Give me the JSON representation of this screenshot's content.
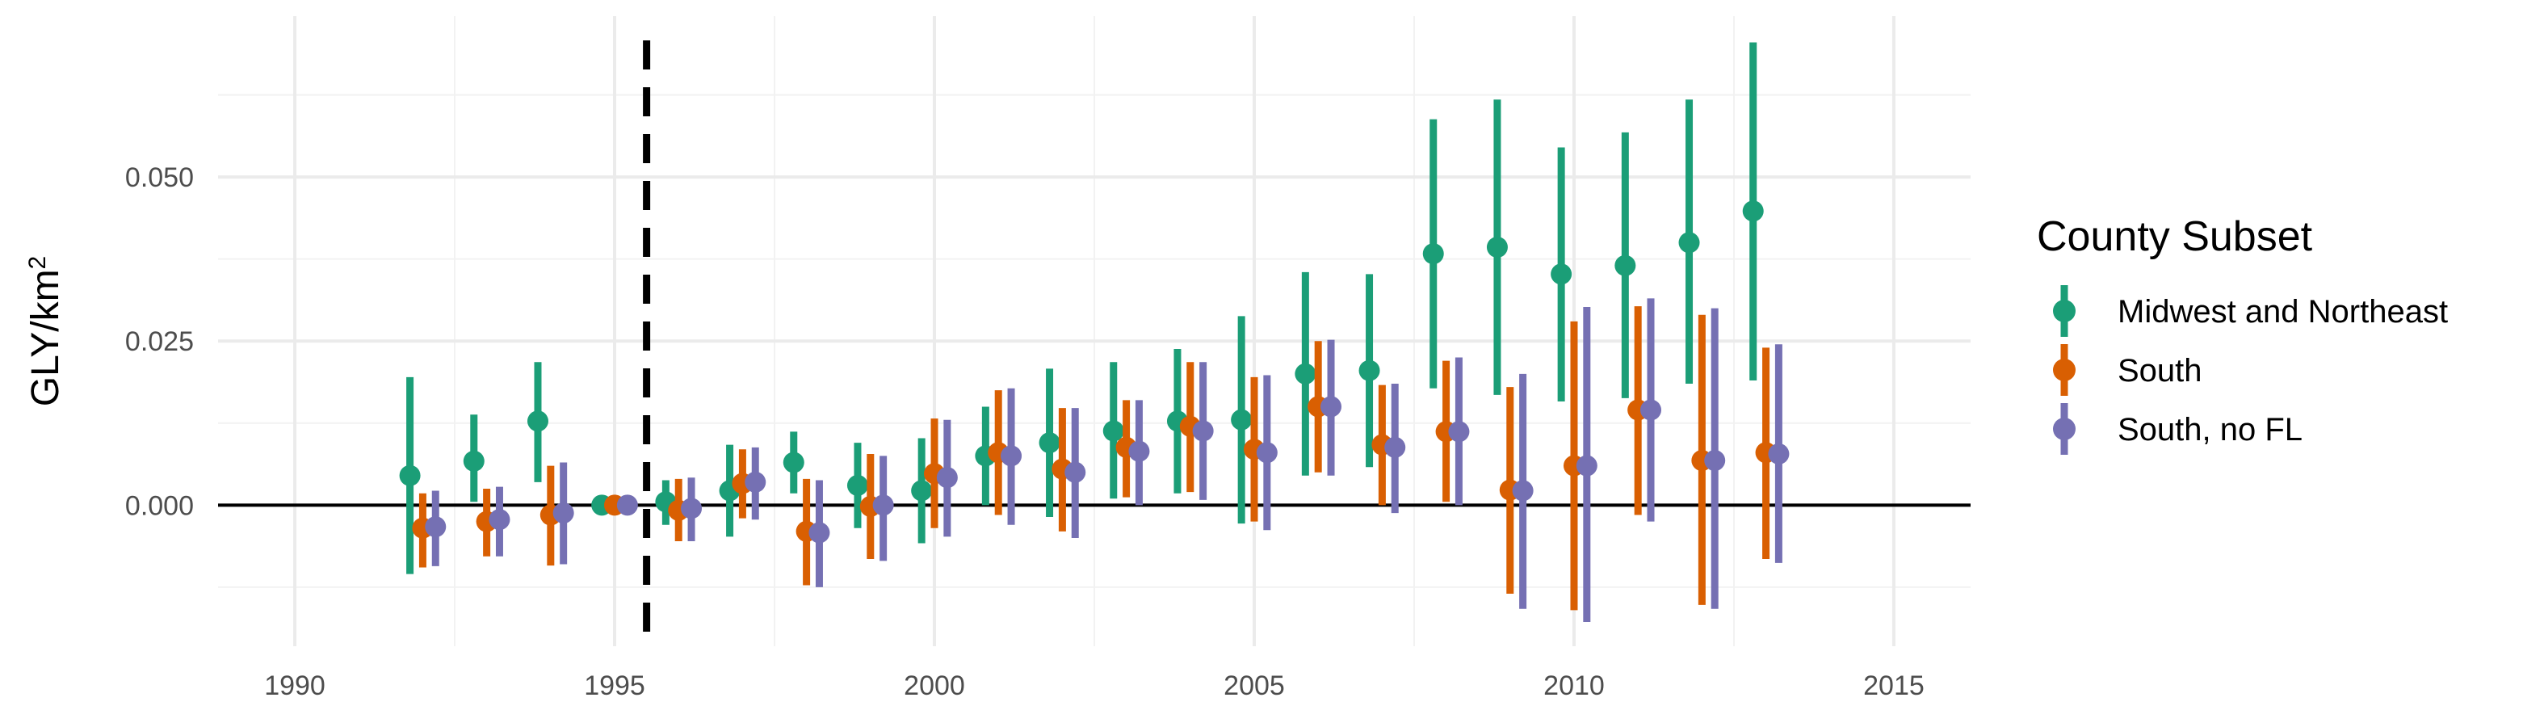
{
  "chart_data": {
    "type": "scatter",
    "title": "",
    "xlabel": "",
    "ylabel": "GLY/km",
    "ylabel_superscript": "2",
    "xlim": [
      1988.8,
      2016.2
    ],
    "ylim": [
      -0.0215,
      0.0745
    ],
    "x_ticks": [
      1990,
      1995,
      2000,
      2005,
      2010,
      2015
    ],
    "x_tick_labels": [
      "1990",
      "1995",
      "2000",
      "2005",
      "2010",
      "2015"
    ],
    "y_ticks": [
      0.0,
      0.025,
      0.05
    ],
    "y_tick_labels": [
      "0.000",
      "0.025",
      "0.050"
    ],
    "grid": true,
    "reference_hline": 0.0,
    "reference_vline": 1995.5,
    "legend": {
      "title": "County Subset",
      "position": "right",
      "entries": [
        "Midwest and Northeast",
        "South",
        "South, no FL"
      ]
    },
    "series": [
      {
        "name": "Midwest and Northeast",
        "color": "#1b9e77",
        "offset": -0.2,
        "points": [
          {
            "x": 1992,
            "y": 0.0045,
            "low": -0.0105,
            "high": 0.0195
          },
          {
            "x": 1993,
            "y": 0.0067,
            "low": 0.0005,
            "high": 0.0138
          },
          {
            "x": 1994,
            "y": 0.0128,
            "low": 0.0035,
            "high": 0.0218
          },
          {
            "x": 1995,
            "y": 0.0,
            "low": 0.0,
            "high": 0.0
          },
          {
            "x": 1996,
            "y": 0.0005,
            "low": -0.003,
            "high": 0.0038
          },
          {
            "x": 1997,
            "y": 0.0022,
            "low": -0.0048,
            "high": 0.0092
          },
          {
            "x": 1998,
            "y": 0.0065,
            "low": 0.0018,
            "high": 0.0112
          },
          {
            "x": 1999,
            "y": 0.003,
            "low": -0.0035,
            "high": 0.0095
          },
          {
            "x": 2000,
            "y": 0.0022,
            "low": -0.0058,
            "high": 0.0102
          },
          {
            "x": 2001,
            "y": 0.0075,
            "low": 0.0,
            "high": 0.015
          },
          {
            "x": 2002,
            "y": 0.0095,
            "low": -0.0018,
            "high": 0.0208
          },
          {
            "x": 2003,
            "y": 0.0113,
            "low": 0.001,
            "high": 0.0218
          },
          {
            "x": 2004,
            "y": 0.0128,
            "low": 0.0018,
            "high": 0.0238
          },
          {
            "x": 2005,
            "y": 0.013,
            "low": -0.0028,
            "high": 0.0288
          },
          {
            "x": 2006,
            "y": 0.02,
            "low": 0.0045,
            "high": 0.0355
          },
          {
            "x": 2007,
            "y": 0.0205,
            "low": 0.0058,
            "high": 0.0352
          },
          {
            "x": 2008,
            "y": 0.0383,
            "low": 0.0178,
            "high": 0.0588
          },
          {
            "x": 2009,
            "y": 0.0393,
            "low": 0.0168,
            "high": 0.0618
          },
          {
            "x": 2010,
            "y": 0.0352,
            "low": 0.0158,
            "high": 0.0545
          },
          {
            "x": 2011,
            "y": 0.0365,
            "low": 0.0163,
            "high": 0.0568
          },
          {
            "x": 2012,
            "y": 0.04,
            "low": 0.0185,
            "high": 0.0618
          },
          {
            "x": 2013,
            "y": 0.0448,
            "low": 0.019,
            "high": 0.0705
          }
        ]
      },
      {
        "name": "South",
        "color": "#d95f02",
        "offset": 0.0,
        "points": [
          {
            "x": 1992,
            "y": -0.0035,
            "low": -0.0095,
            "high": 0.0018
          },
          {
            "x": 1993,
            "y": -0.0025,
            "low": -0.0078,
            "high": 0.0025
          },
          {
            "x": 1994,
            "y": -0.0015,
            "low": -0.0092,
            "high": 0.006
          },
          {
            "x": 1995,
            "y": 0.0,
            "low": 0.0,
            "high": 0.0
          },
          {
            "x": 1996,
            "y": -0.0008,
            "low": -0.0055,
            "high": 0.004
          },
          {
            "x": 1997,
            "y": 0.0033,
            "low": -0.002,
            "high": 0.0085
          },
          {
            "x": 1998,
            "y": -0.004,
            "low": -0.0122,
            "high": 0.004
          },
          {
            "x": 1999,
            "y": -0.0002,
            "low": -0.0082,
            "high": 0.0078
          },
          {
            "x": 2000,
            "y": 0.0048,
            "low": -0.0035,
            "high": 0.0132
          },
          {
            "x": 2001,
            "y": 0.008,
            "low": -0.0015,
            "high": 0.0175
          },
          {
            "x": 2002,
            "y": 0.0055,
            "low": -0.004,
            "high": 0.0148
          },
          {
            "x": 2003,
            "y": 0.0088,
            "low": 0.0012,
            "high": 0.016
          },
          {
            "x": 2004,
            "y": 0.012,
            "low": 0.002,
            "high": 0.0218
          },
          {
            "x": 2005,
            "y": 0.0085,
            "low": -0.0025,
            "high": 0.0195
          },
          {
            "x": 2006,
            "y": 0.015,
            "low": 0.005,
            "high": 0.025
          },
          {
            "x": 2007,
            "y": 0.0092,
            "low": 0.0,
            "high": 0.0183
          },
          {
            "x": 2008,
            "y": 0.0112,
            "low": 0.0005,
            "high": 0.022
          },
          {
            "x": 2009,
            "y": 0.0023,
            "low": -0.0135,
            "high": 0.018
          },
          {
            "x": 2010,
            "y": 0.006,
            "low": -0.016,
            "high": 0.028
          },
          {
            "x": 2011,
            "y": 0.0145,
            "low": -0.0015,
            "high": 0.0303
          },
          {
            "x": 2012,
            "y": 0.0068,
            "low": -0.0152,
            "high": 0.029
          },
          {
            "x": 2013,
            "y": 0.008,
            "low": -0.0082,
            "high": 0.024
          }
        ]
      },
      {
        "name": "South, no FL",
        "color": "#7570b3",
        "offset": 0.2,
        "points": [
          {
            "x": 1992,
            "y": -0.0033,
            "low": -0.0093,
            "high": 0.0022
          },
          {
            "x": 1993,
            "y": -0.0022,
            "low": -0.0078,
            "high": 0.0028
          },
          {
            "x": 1994,
            "y": -0.0012,
            "low": -0.009,
            "high": 0.0065
          },
          {
            "x": 1995,
            "y": 0.0,
            "low": 0.0,
            "high": 0.0
          },
          {
            "x": 1996,
            "y": -0.0005,
            "low": -0.0055,
            "high": 0.0042
          },
          {
            "x": 1997,
            "y": 0.0035,
            "low": -0.0022,
            "high": 0.0088
          },
          {
            "x": 1998,
            "y": -0.0042,
            "low": -0.0125,
            "high": 0.0038
          },
          {
            "x": 1999,
            "y": 0.0,
            "low": -0.0085,
            "high": 0.0075
          },
          {
            "x": 2000,
            "y": 0.0042,
            "low": -0.0048,
            "high": 0.013
          },
          {
            "x": 2001,
            "y": 0.0075,
            "low": -0.003,
            "high": 0.0178
          },
          {
            "x": 2002,
            "y": 0.005,
            "low": -0.005,
            "high": 0.0148
          },
          {
            "x": 2003,
            "y": 0.0082,
            "low": 0.0,
            "high": 0.016
          },
          {
            "x": 2004,
            "y": 0.0113,
            "low": 0.0008,
            "high": 0.0218
          },
          {
            "x": 2005,
            "y": 0.008,
            "low": -0.0038,
            "high": 0.0198
          },
          {
            "x": 2006,
            "y": 0.015,
            "low": 0.0045,
            "high": 0.0252
          },
          {
            "x": 2007,
            "y": 0.0088,
            "low": -0.0012,
            "high": 0.0185
          },
          {
            "x": 2008,
            "y": 0.0112,
            "low": 0.0,
            "high": 0.0225
          },
          {
            "x": 2009,
            "y": 0.0022,
            "low": -0.0158,
            "high": 0.02
          },
          {
            "x": 2010,
            "y": 0.006,
            "low": -0.0178,
            "high": 0.0302
          },
          {
            "x": 2011,
            "y": 0.0145,
            "low": -0.0025,
            "high": 0.0315
          },
          {
            "x": 2012,
            "y": 0.0068,
            "low": -0.0158,
            "high": 0.03
          },
          {
            "x": 2013,
            "y": 0.0078,
            "low": -0.0088,
            "high": 0.0245
          }
        ]
      }
    ]
  }
}
